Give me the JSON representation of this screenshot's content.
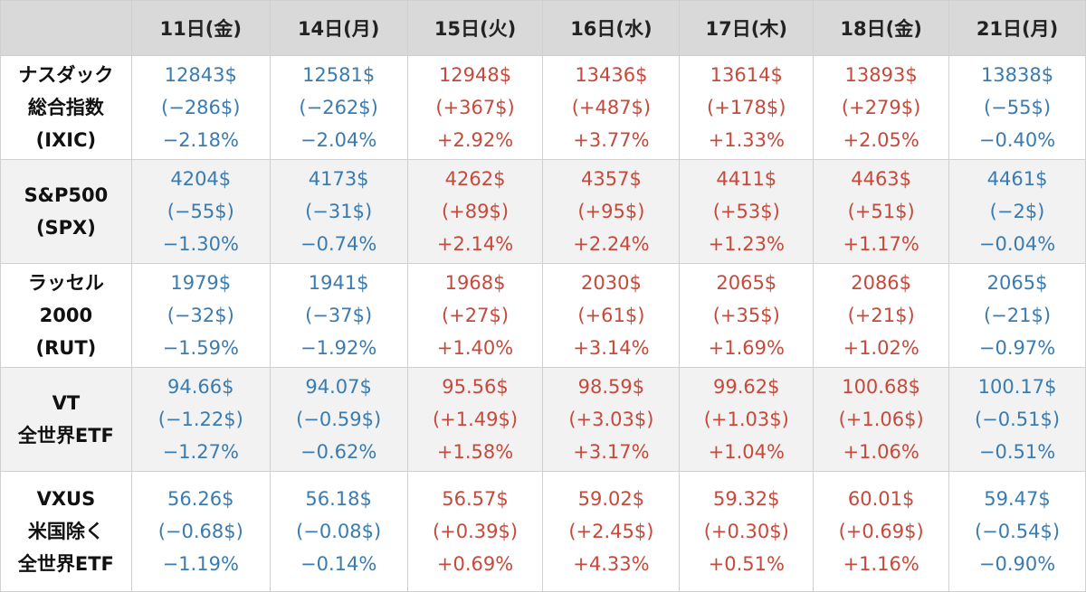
{
  "columns": [
    "11日(金)",
    "14日(月)",
    "15日(火)",
    "16日(水)",
    "17日(木)",
    "18日(金)",
    "21日(月)"
  ],
  "rows": [
    {
      "name": [
        "ナスダック",
        "総合指数",
        "(IXIC)"
      ],
      "cells": [
        [
          "12843$",
          "(−286$)",
          "−2.18%"
        ],
        [
          "12581$",
          "(−262$)",
          "−2.04%"
        ],
        [
          "12948$",
          "(+367$)",
          "+2.92%"
        ],
        [
          "13436$",
          "(+487$)",
          "+3.77%"
        ],
        [
          "13614$",
          "(+178$)",
          "+1.33%"
        ],
        [
          "13893$",
          "(+279$)",
          "+2.05%"
        ],
        [
          "13838$",
          "(−55$)",
          "−0.40%"
        ]
      ]
    },
    {
      "name": [
        "S&P500",
        "(SPX)"
      ],
      "cells": [
        [
          "4204$",
          "(−55$)",
          "−1.30%"
        ],
        [
          "4173$",
          "(−31$)",
          "−0.74%"
        ],
        [
          "4262$",
          "(+89$)",
          "+2.14%"
        ],
        [
          "4357$",
          "(+95$)",
          "+2.24%"
        ],
        [
          "4411$",
          "(+53$)",
          "+1.23%"
        ],
        [
          "4463$",
          "(+51$)",
          "+1.17%"
        ],
        [
          "4461$",
          "(−2$)",
          "−0.04%"
        ]
      ]
    },
    {
      "name": [
        "ラッセル",
        "2000",
        "(RUT)"
      ],
      "cells": [
        [
          "1979$",
          "(−32$)",
          "−1.59%"
        ],
        [
          "1941$",
          "(−37$)",
          "−1.92%"
        ],
        [
          "1968$",
          "(+27$)",
          "+1.40%"
        ],
        [
          "2030$",
          "(+61$)",
          "+3.14%"
        ],
        [
          "2065$",
          "(+35$)",
          "+1.69%"
        ],
        [
          "2086$",
          "(+21$)",
          "+1.02%"
        ],
        [
          "2065$",
          "(−21$)",
          "−0.97%"
        ]
      ]
    },
    {
      "name": [
        "VT",
        "全世界ETF"
      ],
      "cells": [
        [
          "94.66$",
          "(−1.22$)",
          "−1.27%"
        ],
        [
          "94.07$",
          "(−0.59$)",
          "−0.62%"
        ],
        [
          "95.56$",
          "(+1.49$)",
          "+1.58%"
        ],
        [
          "98.59$",
          "(+3.03$)",
          "+3.17%"
        ],
        [
          "99.62$",
          "(+1.03$)",
          "+1.04%"
        ],
        [
          "100.68$",
          "(+1.06$)",
          "+1.06%"
        ],
        [
          "100.17$",
          "(−0.51$)",
          "−0.51%"
        ]
      ]
    },
    {
      "name": [
        "VXUS",
        "米国除く",
        "全世界ETF"
      ],
      "cells": [
        [
          "56.26$",
          "(−0.68$)",
          "−1.19%"
        ],
        [
          "56.18$",
          "(−0.08$)",
          "−0.14%"
        ],
        [
          "56.57$",
          "(+0.39$)",
          "+0.69%"
        ],
        [
          "59.02$",
          "(+2.45$)",
          "+4.33%"
        ],
        [
          "59.32$",
          "(+0.30$)",
          "+0.51%"
        ],
        [
          "60.01$",
          "(+0.69$)",
          "+1.16%"
        ],
        [
          "59.47$",
          "(−0.54$)",
          "−0.90%"
        ]
      ]
    }
  ],
  "colors": {
    "negative": "#3a7bb0",
    "positive": "#c64a3b",
    "header_bg": "#d9d9d9",
    "alt_row_bg": "#f2f2f2"
  }
}
